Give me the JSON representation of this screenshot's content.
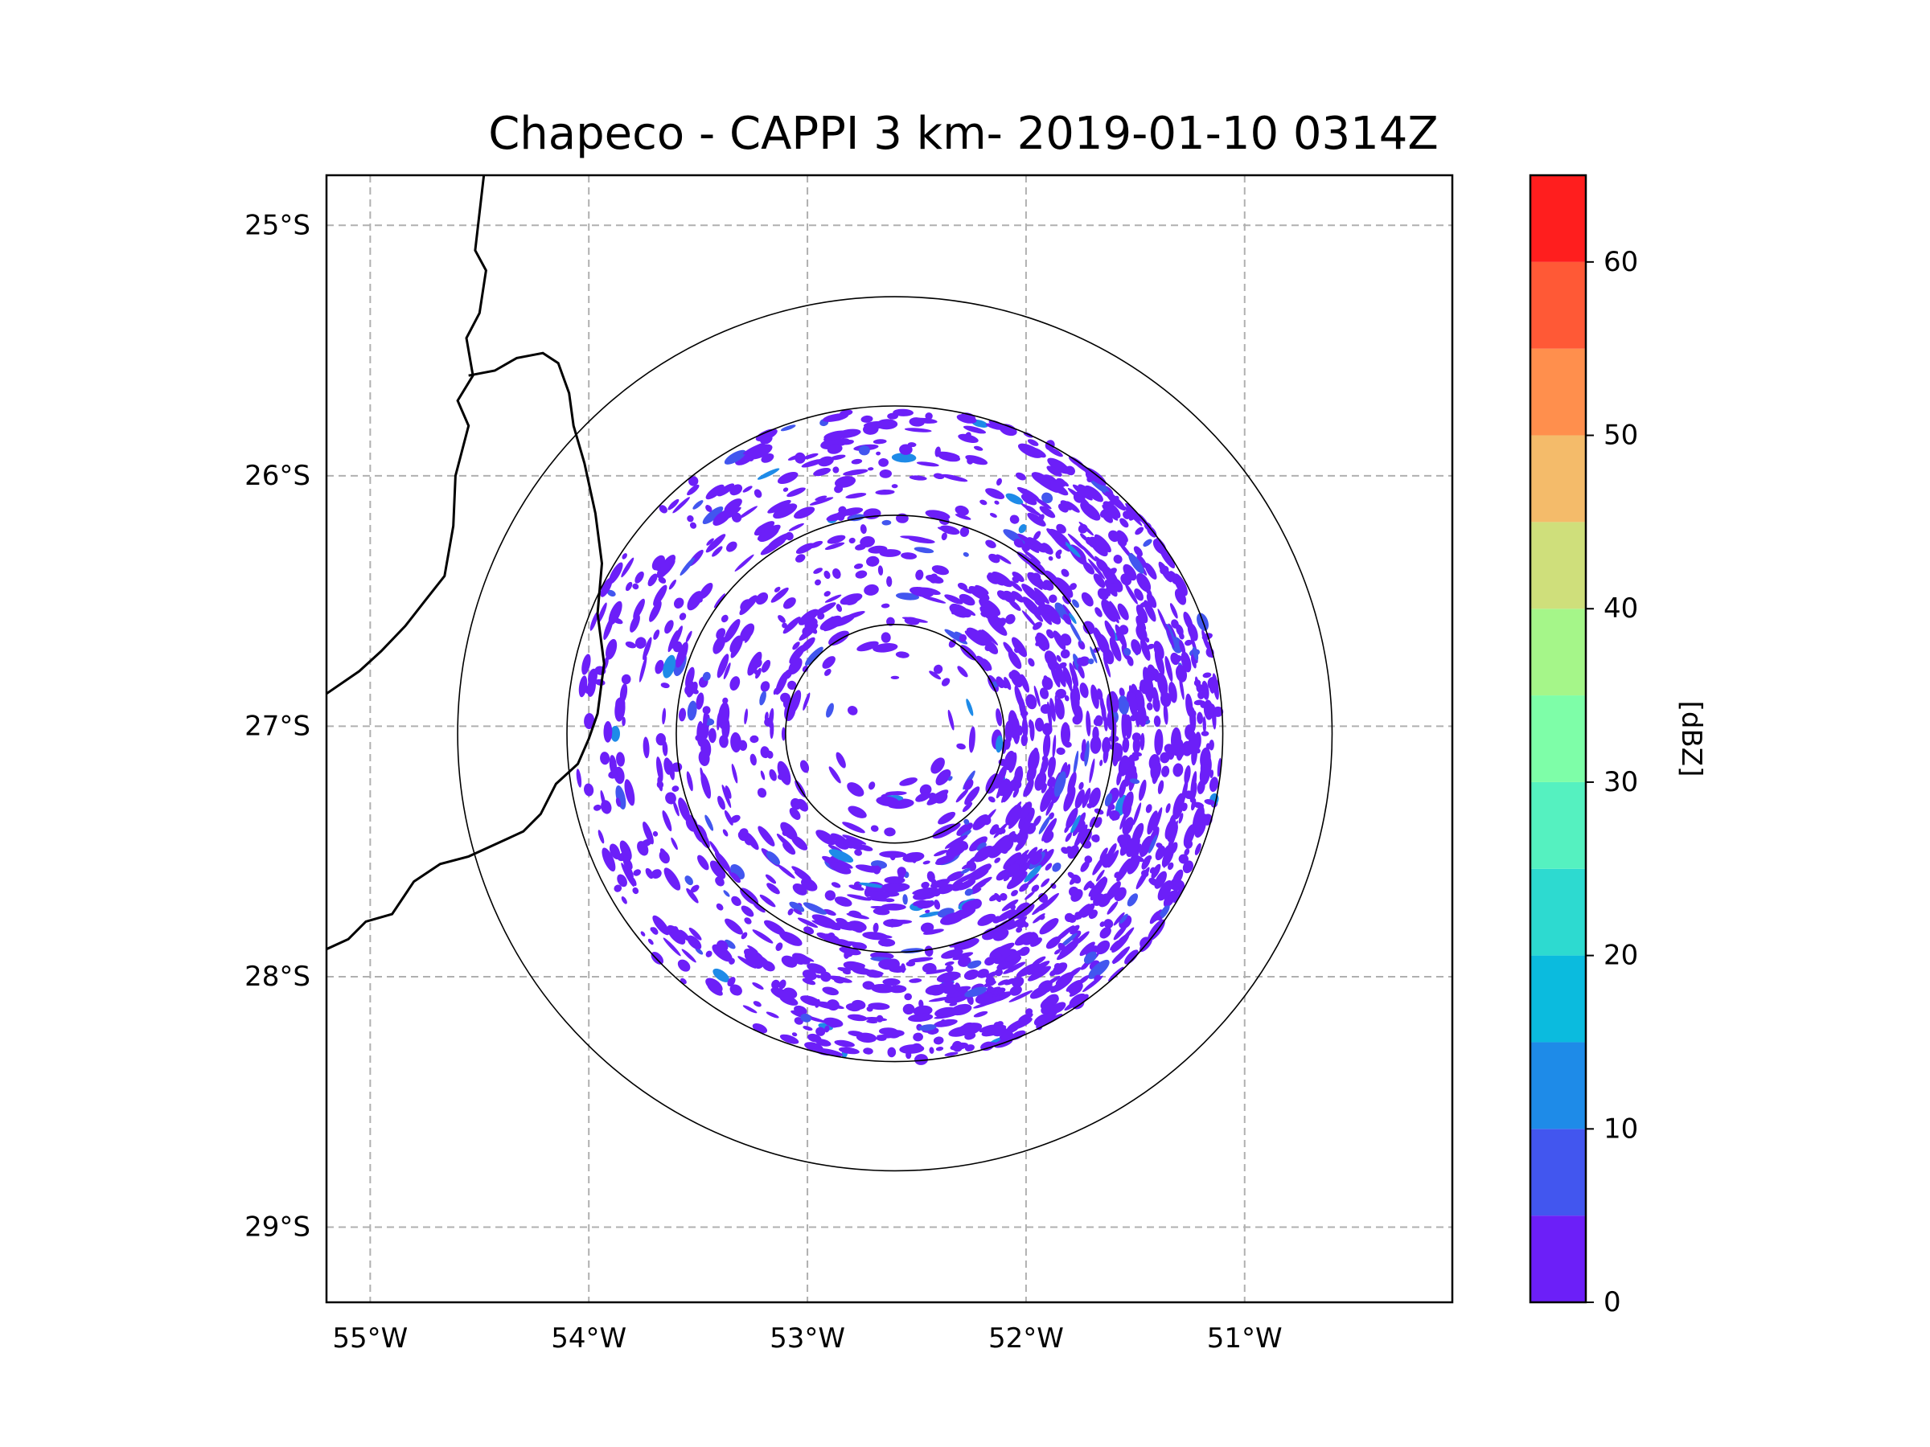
{
  "chart_data": {
    "type": "heatmap",
    "title": "Chapeco - CAPPI 3 km- 2019-01-10 0314Z",
    "map": {
      "lon_range": [
        -55.2,
        -50.05
      ],
      "lat_range": [
        -29.3,
        -24.8
      ],
      "lon_ticks": [
        {
          "value": -55,
          "label": "55°W"
        },
        {
          "value": -54,
          "label": "54°W"
        },
        {
          "value": -53,
          "label": "53°W"
        },
        {
          "value": -52,
          "label": "52°W"
        },
        {
          "value": -51,
          "label": "51°W"
        }
      ],
      "lat_ticks": [
        {
          "value": -25,
          "label": "25°S"
        },
        {
          "value": -26,
          "label": "26°S"
        },
        {
          "value": -27,
          "label": "27°S"
        },
        {
          "value": -28,
          "label": "28°S"
        },
        {
          "value": -29,
          "label": "29°S"
        }
      ],
      "gridlines": true,
      "gridline_style": "dashed",
      "radar_center": {
        "lon": -52.6,
        "lat": -27.03
      },
      "range_rings_deg": [
        0.5,
        1.0,
        1.5,
        2.0
      ],
      "coastline": [
        [
          -54.48,
          -24.8
        ],
        [
          -54.52,
          -25.1
        ],
        [
          -54.47,
          -25.18
        ],
        [
          -54.5,
          -25.35
        ],
        [
          -54.56,
          -25.45
        ],
        [
          -54.53,
          -25.6
        ],
        [
          -54.6,
          -25.7
        ],
        [
          -54.55,
          -25.8
        ],
        [
          -54.61,
          -26.0
        ],
        [
          -54.62,
          -26.2
        ],
        [
          -54.66,
          -26.4
        ],
        [
          -54.75,
          -26.5
        ],
        [
          -54.84,
          -26.6
        ],
        [
          -54.95,
          -26.7
        ],
        [
          -55.05,
          -26.78
        ],
        [
          -55.2,
          -26.87
        ]
      ],
      "borders": [
        [
          [
            -54.55,
            -25.6
          ],
          [
            -54.43,
            -25.58
          ],
          [
            -54.33,
            -25.53
          ],
          [
            -54.21,
            -25.51
          ],
          [
            -54.14,
            -25.55
          ],
          [
            -54.09,
            -25.67
          ],
          [
            -54.07,
            -25.8
          ],
          [
            -54.02,
            -25.95
          ],
          [
            -53.97,
            -26.15
          ],
          [
            -53.94,
            -26.35
          ],
          [
            -53.96,
            -26.55
          ],
          [
            -53.93,
            -26.75
          ],
          [
            -53.96,
            -26.95
          ],
          [
            -54.0,
            -27.05
          ],
          [
            -54.05,
            -27.15
          ],
          [
            -54.15,
            -27.23
          ],
          [
            -54.22,
            -27.35
          ],
          [
            -54.3,
            -27.42
          ],
          [
            -54.45,
            -27.48
          ],
          [
            -54.55,
            -27.52
          ],
          [
            -54.68,
            -27.55
          ],
          [
            -54.8,
            -27.62
          ],
          [
            -54.9,
            -27.75
          ],
          [
            -55.02,
            -27.78
          ],
          [
            -55.1,
            -27.85
          ],
          [
            -55.2,
            -27.89
          ]
        ]
      ]
    },
    "field": {
      "variable": "reflectivity",
      "units": "dBZ",
      "dominant_range_dbz": [
        0,
        10
      ],
      "echo_annulus_deg": [
        0.5,
        1.5
      ],
      "strongest_sector": "east / north-east"
    },
    "colorbar": {
      "label": "[dBZ]",
      "min": 0,
      "max": 65,
      "step": 5,
      "ticks": [
        0,
        10,
        20,
        30,
        40,
        50,
        60
      ],
      "tick_labels": [
        "0",
        "10",
        "20",
        "30",
        "40",
        "50",
        "60"
      ],
      "colors": [
        "#6c1ff8",
        "#4256ef",
        "#1e8be8",
        "#0bbbde",
        "#2ddad0",
        "#55f1c0",
        "#7efea8",
        "#a5f689",
        "#cfdf7b",
        "#f4bb6a",
        "#ff8f4d",
        "#ff5936",
        "#ff1e1e"
      ]
    }
  }
}
